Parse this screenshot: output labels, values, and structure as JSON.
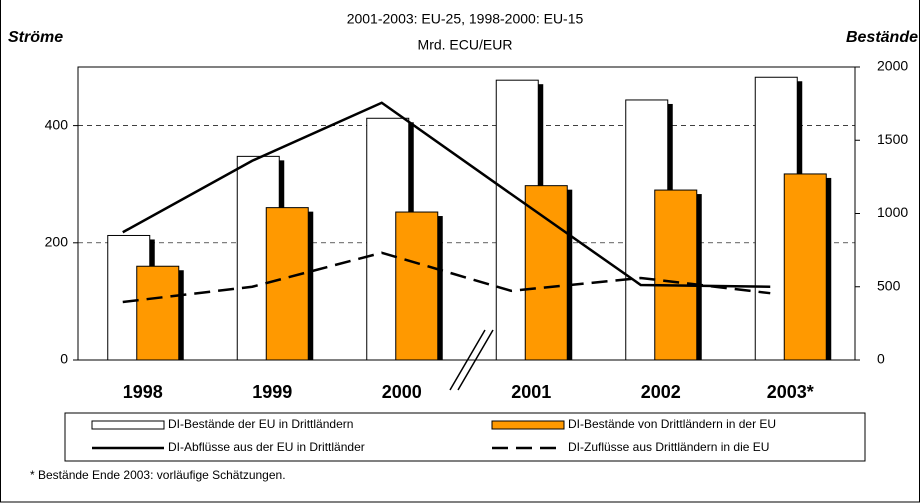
{
  "chart_data": {
    "type": "bar",
    "subtitle": [
      "2001-2003: EU-25, 1998-2000: EU-15",
      "Mrd. ECU/EUR"
    ],
    "ylabel": "Ströme",
    "y2label": "Bestände",
    "categories": [
      "1998",
      "1999",
      "2000",
      "2001",
      "2002",
      "2003*"
    ],
    "series": [
      {
        "name": "DI-Bestände der EU in Drittländern",
        "type": "bar",
        "color": "#ffffff",
        "axis": "y2",
        "values": [
          850,
          1390,
          1650,
          1910,
          1775,
          1930
        ]
      },
      {
        "name": "DI-Bestände von Drittländern in der EU",
        "type": "bar",
        "color": "#ff9900",
        "axis": "y2",
        "values": [
          640,
          1040,
          1010,
          1190,
          1160,
          1270
        ]
      },
      {
        "name": "DI-Abflüsse aus der EU in Drittländer",
        "type": "line",
        "color": "#000000",
        "dashed": false,
        "values": [
          218,
          340,
          439,
          283,
          128,
          125
        ]
      },
      {
        "name": "DI-Zuflüsse aus Drittländern in die EU",
        "type": "line",
        "color": "#000000",
        "dashed": true,
        "values": [
          99,
          125,
          183,
          118,
          140,
          114
        ]
      }
    ],
    "ylim": [
      0,
      500
    ],
    "yticks": [
      0,
      200,
      400
    ],
    "y2lim": [
      0,
      2000
    ],
    "y2ticks": [
      0,
      500,
      1000,
      1500,
      2000
    ],
    "grid": true,
    "footnote": "* Bestände Ende 2003: vorläufige Schätzungen."
  }
}
